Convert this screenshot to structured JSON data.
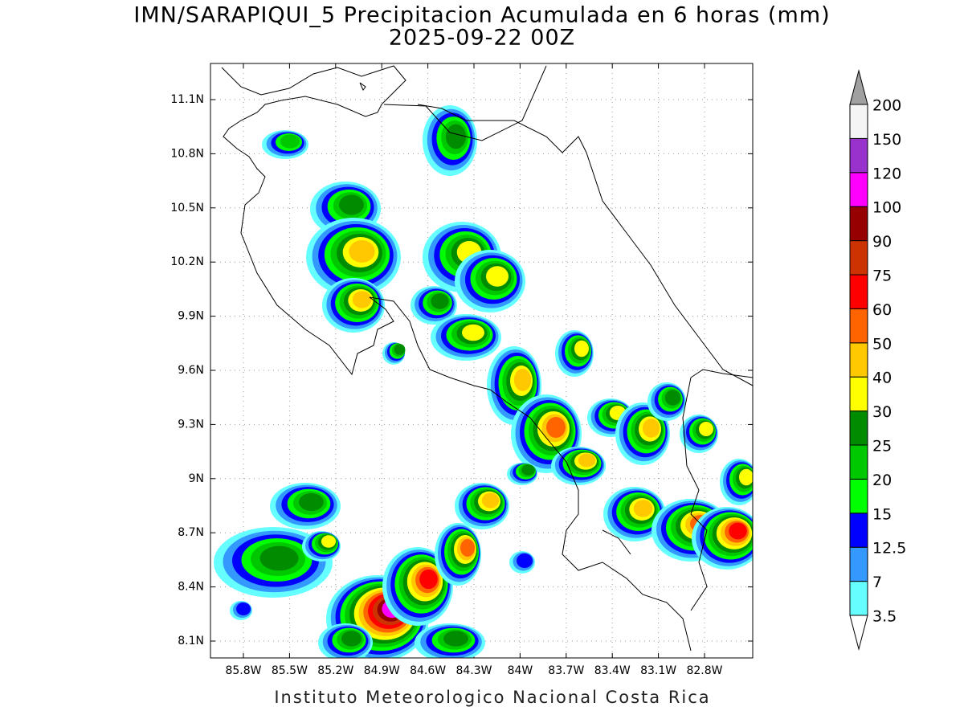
{
  "title": "IMN/SARAPIQUI_5 Precipitacion Acumulada en 6 horas (mm)",
  "subtitle": "2025-09-22 00Z",
  "lat_labels": [
    "11.1N",
    "10.8N",
    "10.5N",
    "10.2N",
    "9.9N",
    "9.6N",
    "9.3N",
    "9N",
    "8.7N",
    "8.4N",
    "8.1N"
  ],
  "lon_labels": [
    "85.8W",
    "85.5W",
    "85.2W",
    "84.9W",
    "84.6W",
    "84.3W",
    "84W",
    "83.7W",
    "83.4W",
    "83.1W",
    "82.8W"
  ],
  "colorbar": {
    "levels": [
      3.5,
      7,
      12.5,
      15,
      20,
      25,
      30,
      40,
      50,
      60,
      75,
      90,
      100,
      120,
      150,
      200
    ],
    "colors": [
      "#66ffff",
      "#3399ff",
      "#0000ff",
      "#00ff00",
      "#00c800",
      "#008c00",
      "#ffff00",
      "#ffc800",
      "#ff6400",
      "#ff0000",
      "#cc3300",
      "#960000",
      "#ff00ff",
      "#9932cc",
      "#f4f4f4"
    ],
    "under_color": "#ffffff",
    "over_color": "#a0a0a0"
  },
  "footer": "Instituto Meteorologico Nacional Costa Rica"
}
